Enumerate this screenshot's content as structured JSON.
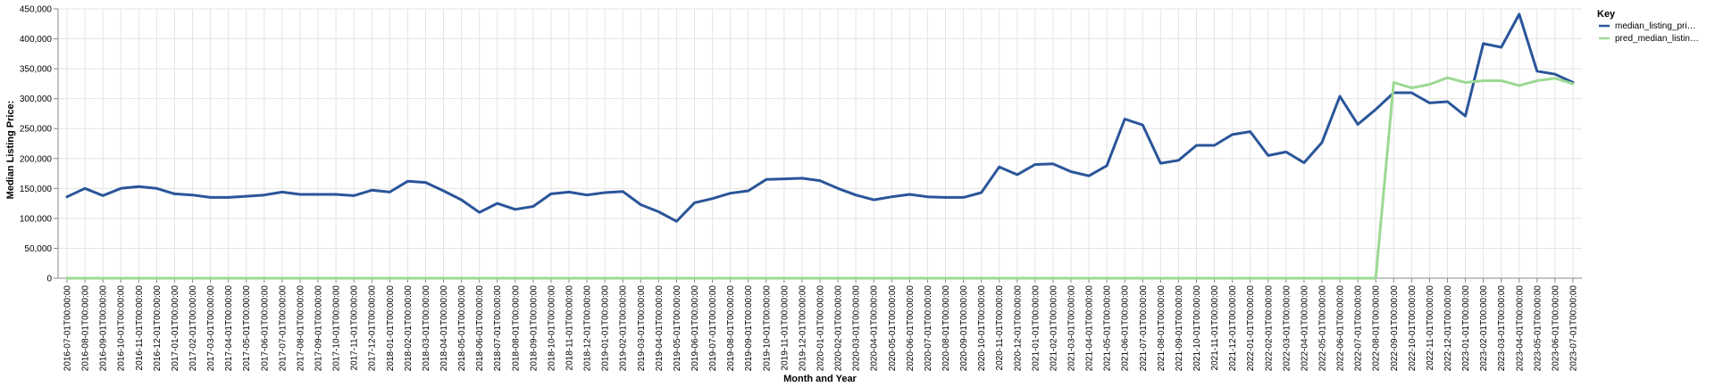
{
  "chart_data": {
    "type": "line",
    "xlabel": "Month and Year",
    "ylabel": "Median Listing Price:",
    "ylim": [
      0,
      450000
    ],
    "yticks": [
      0,
      50000,
      100000,
      150000,
      200000,
      250000,
      300000,
      350000,
      400000,
      450000
    ],
    "ytick_labels": [
      "0",
      "50,000",
      "100,000",
      "150,000",
      "200,000",
      "250,000",
      "300,000",
      "350,000",
      "400,000",
      "450,000"
    ],
    "grid": true,
    "legend": {
      "title": "Key",
      "placement": "top-right",
      "entries": [
        {
          "label": "median_listing_pri…",
          "color": "#2a5599"
        },
        {
          "label": "pred_median_listin…",
          "color": "#9cd993"
        }
      ]
    },
    "x": [
      "2016-07-01T00:00:00",
      "2016-08-01T00:00:00",
      "2016-09-01T00:00:00",
      "2016-10-01T00:00:00",
      "2016-11-01T00:00:00",
      "2016-12-01T00:00:00",
      "2017-01-01T00:00:00",
      "2017-02-01T00:00:00",
      "2017-03-01T00:00:00",
      "2017-04-01T00:00:00",
      "2017-05-01T00:00:00",
      "2017-06-01T00:00:00",
      "2017-07-01T00:00:00",
      "2017-08-01T00:00:00",
      "2017-09-01T00:00:00",
      "2017-10-01T00:00:00",
      "2017-11-01T00:00:00",
      "2017-12-01T00:00:00",
      "2018-01-01T00:00:00",
      "2018-02-01T00:00:00",
      "2018-03-01T00:00:00",
      "2018-04-01T00:00:00",
      "2018-05-01T00:00:00",
      "2018-06-01T00:00:00",
      "2018-07-01T00:00:00",
      "2018-08-01T00:00:00",
      "2018-09-01T00:00:00",
      "2018-10-01T00:00:00",
      "2018-11-01T00:00:00",
      "2018-12-01T00:00:00",
      "2019-01-01T00:00:00",
      "2019-02-01T00:00:00",
      "2019-03-01T00:00:00",
      "2019-04-01T00:00:00",
      "2019-05-01T00:00:00",
      "2019-06-01T00:00:00",
      "2019-07-01T00:00:00",
      "2019-08-01T00:00:00",
      "2019-09-01T00:00:00",
      "2019-10-01T00:00:00",
      "2019-11-01T00:00:00",
      "2019-12-01T00:00:00",
      "2020-01-01T00:00:00",
      "2020-02-01T00:00:00",
      "2020-03-01T00:00:00",
      "2020-04-01T00:00:00",
      "2020-05-01T00:00:00",
      "2020-06-01T00:00:00",
      "2020-07-01T00:00:00",
      "2020-08-01T00:00:00",
      "2020-09-01T00:00:00",
      "2020-10-01T00:00:00",
      "2020-11-01T00:00:00",
      "2020-12-01T00:00:00",
      "2021-01-01T00:00:00",
      "2021-02-01T00:00:00",
      "2021-03-01T00:00:00",
      "2021-04-01T00:00:00",
      "2021-05-01T00:00:00",
      "2021-06-01T00:00:00",
      "2021-07-01T00:00:00",
      "2021-08-01T00:00:00",
      "2021-09-01T00:00:00",
      "2021-10-01T00:00:00",
      "2021-11-01T00:00:00",
      "2021-12-01T00:00:00",
      "2022-01-01T00:00:00",
      "2022-02-01T00:00:00",
      "2022-03-01T00:00:00",
      "2022-04-01T00:00:00",
      "2022-05-01T00:00:00",
      "2022-06-01T00:00:00",
      "2022-07-01T00:00:00",
      "2022-08-01T00:00:00",
      "2022-09-01T00:00:00",
      "2022-10-01T00:00:00",
      "2022-11-01T00:00:00",
      "2022-12-01T00:00:00",
      "2023-01-01T00:00:00",
      "2023-02-01T00:00:00",
      "2023-03-01T00:00:00",
      "2023-04-01T00:00:00",
      "2023-05-01T00:00:00",
      "2023-06-01T00:00:00",
      "2023-07-01T00:00:00"
    ],
    "series": [
      {
        "name": "median_listing_pri…",
        "color": "#2a5599",
        "values": [
          136000,
          150000,
          138000,
          150000,
          153000,
          150000,
          141000,
          139000,
          135000,
          135000,
          137000,
          139000,
          144000,
          140000,
          140000,
          140000,
          138000,
          147000,
          144000,
          162000,
          160000,
          146000,
          131000,
          110000,
          125000,
          115000,
          120000,
          141000,
          144000,
          139000,
          143000,
          145000,
          123000,
          111000,
          95000,
          126000,
          133000,
          142000,
          146000,
          165000,
          166000,
          167000,
          163000,
          150000,
          139000,
          131000,
          136000,
          140000,
          136000,
          135000,
          135000,
          143000,
          186000,
          173000,
          190000,
          191000,
          178000,
          171000,
          188000,
          266000,
          256000,
          192000,
          197000,
          222000,
          222000,
          240000,
          245000,
          205000,
          211000,
          193000,
          227000,
          304000,
          257000,
          282000,
          310000,
          310000,
          293000,
          295000,
          271000,
          392000,
          386000,
          441000,
          346000,
          341000,
          327000
        ]
      },
      {
        "name": "pred_median_listin…",
        "color": "#9cd993",
        "values": [
          0,
          0,
          0,
          0,
          0,
          0,
          0,
          0,
          0,
          0,
          0,
          0,
          0,
          0,
          0,
          0,
          0,
          0,
          0,
          0,
          0,
          0,
          0,
          0,
          0,
          0,
          0,
          0,
          0,
          0,
          0,
          0,
          0,
          0,
          0,
          0,
          0,
          0,
          0,
          0,
          0,
          0,
          0,
          0,
          0,
          0,
          0,
          0,
          0,
          0,
          0,
          0,
          0,
          0,
          0,
          0,
          0,
          0,
          0,
          0,
          0,
          0,
          0,
          0,
          0,
          0,
          0,
          0,
          0,
          0,
          0,
          0,
          0,
          0,
          327000,
          318000,
          324000,
          335000,
          327000,
          330000,
          330000,
          322000,
          330000,
          334000,
          325000
        ]
      }
    ]
  }
}
